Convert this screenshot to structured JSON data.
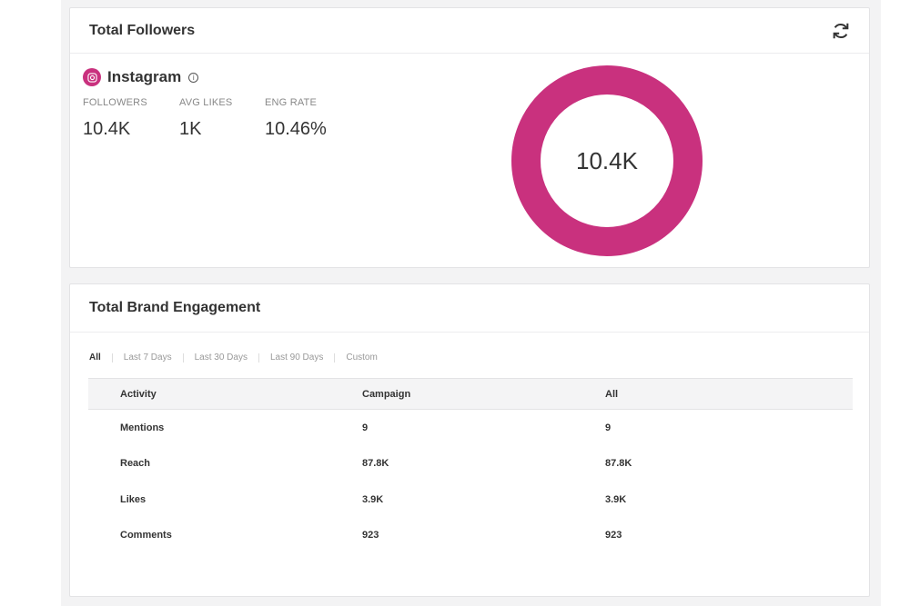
{
  "followers_card": {
    "title": "Total Followers",
    "platform": "Instagram",
    "info": "i",
    "stats": [
      {
        "label": "FOLLOWERS",
        "value": "10.4K"
      },
      {
        "label": "AVG LIKES",
        "value": "1K"
      },
      {
        "label": "ENG RATE",
        "value": "10.46%"
      }
    ],
    "donut_value": "10.4K",
    "accent": "#c9317e"
  },
  "engagement_card": {
    "title": "Total Brand Engagement",
    "filters": [
      "All",
      "Last 7 Days",
      "Last 30 Days",
      "Last 90 Days",
      "Custom"
    ],
    "columns": [
      "Activity",
      "Campaign",
      "All"
    ],
    "rows": [
      [
        "Mentions",
        "9",
        "9"
      ],
      [
        "Reach",
        "87.8K",
        "87.8K"
      ],
      [
        "Likes",
        "3.9K",
        "3.9K"
      ],
      [
        "Comments",
        "923",
        "923"
      ]
    ]
  }
}
